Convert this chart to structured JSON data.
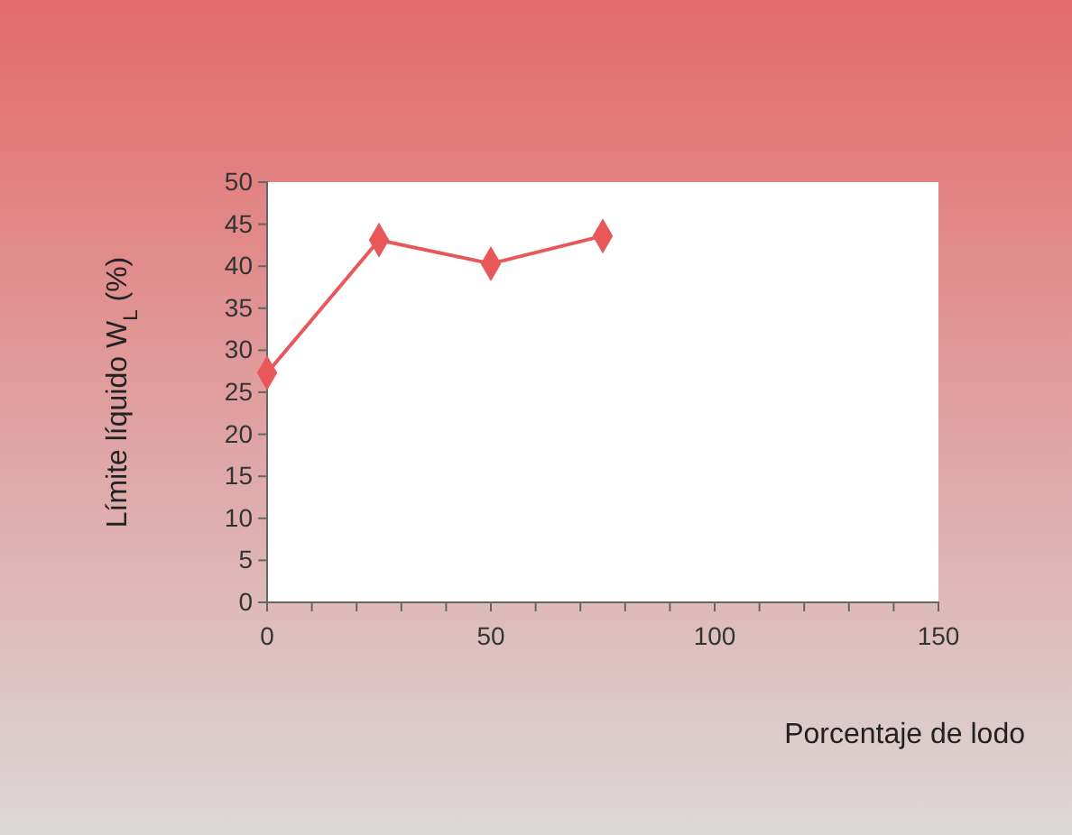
{
  "chart_data": {
    "type": "line",
    "xlabel": "Porcentaje de lodo",
    "ylabel": "Límite líquido W$_{L}$ (%)",
    "x": [
      0,
      25,
      50,
      75
    ],
    "series": [
      {
        "color": "#e8585a",
        "values": [
          27.3,
          43.1,
          40.3,
          43.6
        ]
      }
    ],
    "xlim": [
      0,
      150
    ],
    "xticks": [
      0,
      {
        "value": 10,
        "label": null
      },
      {
        "value": 20,
        "label": null
      },
      {
        "value": 30,
        "label": null
      },
      {
        "value": 40,
        "label": null
      },
      50,
      {
        "value": 60,
        "label": null
      },
      {
        "value": 70,
        "label": null
      },
      {
        "value": 80,
        "label": null
      },
      {
        "value": 90,
        "label": null
      },
      100,
      {
        "value": 110,
        "label": null
      },
      {
        "value": 120,
        "label": null
      },
      {
        "value": 130,
        "label": null
      },
      {
        "value": 140,
        "label": null
      },
      150
    ],
    "ylim": [
      0,
      50
    ],
    "yticks": [
      0,
      5,
      10,
      15,
      20,
      25,
      30,
      35,
      40,
      45,
      50
    ],
    "marker": "diamond",
    "line_style": "solid",
    "grid": false
  }
}
